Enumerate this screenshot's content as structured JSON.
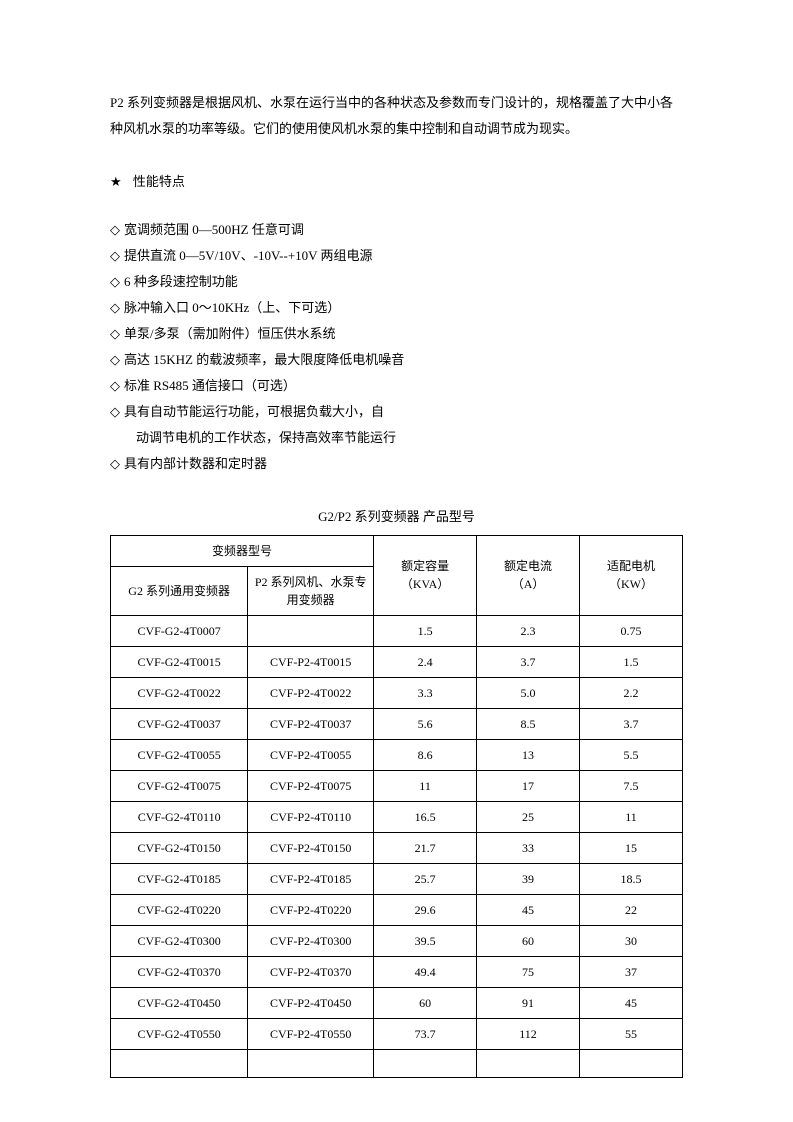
{
  "intro": "P2 系列变频器是根据风机、水泵在运行当中的各种状态及参数而专门设计的，规格覆盖了大中小各种风机水泵的功率等级。它们的使用使风机水泵的集中控制和自动调节成为现实。",
  "section_star": "★",
  "section_heading": "性能特点",
  "diamond": "◇",
  "features": [
    "宽调频范围 0—500HZ 任意可调",
    "提供直流 0—5V/10V、-10V--+10V 两组电源",
    "6 种多段速控制功能",
    "脉冲输入口 0～10KHz（上、下可选）",
    "单泵/多泵（需加附件）恒压供水系统",
    "高达 15KHZ 的载波频率，最大限度降低电机噪音",
    "标准 RS485 通信接口（可选）",
    "具有自动节能运行功能，可根据负载大小，自"
  ],
  "feature_cont": "动调节电机的工作状态，保持高效率节能运行",
  "feature_last": "具有内部计数器和定时器",
  "table_title": "G2/P2 系列变频器 产品型号",
  "table": {
    "header_model": "变频器型号",
    "header_g2": "G2 系列通用变频器",
    "header_p2": "P2 系列风机、水泵专用变频器",
    "header_kva_1": "额定容量",
    "header_kva_2": "（KVA）",
    "header_a_1": "额定电流",
    "header_a_2": "（A）",
    "header_kw_1": "适配电机",
    "header_kw_2": "（KW）",
    "rows": [
      {
        "g2": "CVF-G2-4T0007",
        "p2": "",
        "kva": "1.5",
        "a": "2.3",
        "kw": "0.75"
      },
      {
        "g2": "CVF-G2-4T0015",
        "p2": "CVF-P2-4T0015",
        "kva": "2.4",
        "a": "3.7",
        "kw": "1.5"
      },
      {
        "g2": "CVF-G2-4T0022",
        "p2": "CVF-P2-4T0022",
        "kva": "3.3",
        "a": "5.0",
        "kw": "2.2"
      },
      {
        "g2": "CVF-G2-4T0037",
        "p2": "CVF-P2-4T0037",
        "kva": "5.6",
        "a": "8.5",
        "kw": "3.7"
      },
      {
        "g2": "CVF-G2-4T0055",
        "p2": "CVF-P2-4T0055",
        "kva": "8.6",
        "a": "13",
        "kw": "5.5"
      },
      {
        "g2": "CVF-G2-4T0075",
        "p2": "CVF-P2-4T0075",
        "kva": "11",
        "a": "17",
        "kw": "7.5"
      },
      {
        "g2": "CVF-G2-4T0110",
        "p2": "CVF-P2-4T0110",
        "kva": "16.5",
        "a": "25",
        "kw": "11"
      },
      {
        "g2": "CVF-G2-4T0150",
        "p2": "CVF-P2-4T0150",
        "kva": "21.7",
        "a": "33",
        "kw": "15"
      },
      {
        "g2": "CVF-G2-4T0185",
        "p2": "CVF-P2-4T0185",
        "kva": "25.7",
        "a": "39",
        "kw": "18.5"
      },
      {
        "g2": "CVF-G2-4T0220",
        "p2": "CVF-P2-4T0220",
        "kva": "29.6",
        "a": "45",
        "kw": "22"
      },
      {
        "g2": "CVF-G2-4T0300",
        "p2": "CVF-P2-4T0300",
        "kva": "39.5",
        "a": "60",
        "kw": "30"
      },
      {
        "g2": "CVF-G2-4T0370",
        "p2": "CVF-P2-4T0370",
        "kva": "49.4",
        "a": "75",
        "kw": "37"
      },
      {
        "g2": "CVF-G2-4T0450",
        "p2": "CVF-P2-4T0450",
        "kva": "60",
        "a": "91",
        "kw": "45"
      },
      {
        "g2": "CVF-G2-4T0550",
        "p2": "CVF-P2-4T0550",
        "kva": "73.7",
        "a": "112",
        "kw": "55"
      }
    ]
  }
}
